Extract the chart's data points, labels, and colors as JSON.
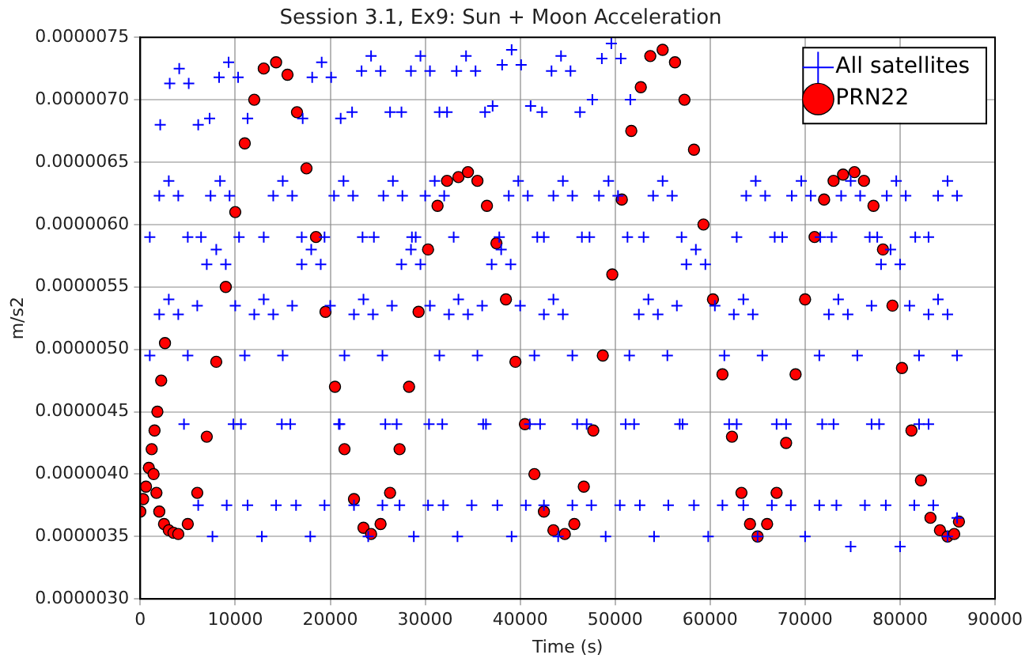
{
  "chart_data": {
    "type": "scatter",
    "title": "Session 3.1, Ex9: Sun + Moon Acceleration",
    "xlabel": "Time (s)",
    "ylabel": "m/s2",
    "xlim": [
      0,
      90000
    ],
    "xticks": [
      0,
      10000,
      20000,
      30000,
      40000,
      50000,
      60000,
      70000,
      80000,
      90000
    ],
    "ylim": [
      3e-06,
      7.5e-06
    ],
    "yticks": [
      {
        "value": 3e-06,
        "label": "0.0000030"
      },
      {
        "value": 3.5e-06,
        "label": "0.0000035"
      },
      {
        "value": 4e-06,
        "label": "0.0000040"
      },
      {
        "value": 4.5e-06,
        "label": "0.0000045"
      },
      {
        "value": 5e-06,
        "label": "0.0000050"
      },
      {
        "value": 5.5e-06,
        "label": "0.0000055"
      },
      {
        "value": 6e-06,
        "label": "0.0000060"
      },
      {
        "value": 6.5e-06,
        "label": "0.0000065"
      },
      {
        "value": 7e-06,
        "label": "0.0000070"
      },
      {
        "value": 7.5e-06,
        "label": "0.0000075"
      }
    ],
    "grid": true,
    "legend": "top right",
    "series": [
      {
        "name": "All satellites",
        "type": "scatter",
        "marker": "cross",
        "color": "#0000ff",
        "x": [
          4600,
          6100,
          7600,
          9100,
          10600,
          9800,
          11300,
          12800,
          14300,
          15800,
          14900,
          16400,
          17900,
          19400,
          20900,
          21000,
          22500,
          24000,
          25500,
          27000,
          25800,
          27300,
          28800,
          30300,
          31800,
          30400,
          31900,
          33400,
          34900,
          36400,
          36100,
          37600,
          39100,
          40600,
          42100,
          41000,
          42500,
          44000,
          45500,
          47000,
          46000,
          47500,
          49000,
          50500,
          52000,
          51100,
          52600,
          54100,
          55600,
          57100,
          56800,
          58300,
          59800,
          61300,
          62800,
          62000,
          63500,
          65000,
          66500,
          68000,
          67000,
          68500,
          70000,
          71500,
          73000,
          71800,
          73300,
          74800,
          76300,
          77800,
          77000,
          78500,
          80000,
          81500,
          83000,
          82000,
          83500,
          85000,
          86000,
          2100,
          3100,
          4100,
          5100,
          6100,
          7300,
          8300,
          9300,
          10300,
          11300,
          17100,
          18100,
          19100,
          20100,
          21100,
          22300,
          23300,
          24300,
          25300,
          26300,
          27500,
          28500,
          29500,
          30500,
          31500,
          32300,
          33300,
          34300,
          35300,
          36300,
          37100,
          38100,
          39100,
          40100,
          41100,
          42300,
          43300,
          44300,
          45300,
          46300,
          47600,
          48600,
          49600,
          50600,
          51600,
          1000,
          2000,
          3000,
          4000,
          5000,
          6400,
          7400,
          8400,
          9400,
          10400,
          13000,
          14000,
          15000,
          16000,
          17000,
          19400,
          20400,
          21400,
          22400,
          23400,
          24600,
          25600,
          26600,
          27600,
          28600,
          29000,
          30000,
          31000,
          32000,
          33000,
          37800,
          38800,
          39800,
          40800,
          41800,
          42500,
          43500,
          44500,
          45500,
          46500,
          47300,
          48300,
          49300,
          50300,
          51300,
          53000,
          54000,
          55000,
          56000,
          57000,
          62800,
          63800,
          64800,
          65800,
          66800,
          67600,
          68600,
          69600,
          70600,
          71600,
          72800,
          73800,
          74800,
          75800,
          76800,
          77600,
          78600,
          79600,
          80600,
          81600,
          83000,
          84000,
          85000,
          86000,
          6000,
          7000,
          8000,
          9000,
          10000,
          16000,
          17000,
          18000,
          19000,
          20000,
          26500,
          27500,
          28500,
          29500,
          30500,
          36000,
          37000,
          38000,
          39000,
          40000,
          56500,
          57500,
          58500,
          59500,
          60500,
          77000,
          78000,
          79000,
          80000,
          81000,
          1000,
          2000,
          3000,
          4000,
          5000,
          11000,
          12000,
          13000,
          14000,
          15000,
          21500,
          22500,
          23500,
          24500,
          25500,
          31500,
          32500,
          33500,
          34500,
          35500,
          41500,
          42500,
          43500,
          44500,
          45500,
          51500,
          52500,
          53500,
          54500,
          55500,
          61500,
          62500,
          63500,
          64500,
          65500,
          71500,
          72500,
          73500,
          74500,
          75500,
          82000,
          83000,
          84000,
          85000,
          86000
        ],
        "values": [
          4.4e-06,
          3.75e-06,
          3.5e-06,
          3.75e-06,
          4.4e-06,
          4.4e-06,
          3.75e-06,
          3.5e-06,
          3.75e-06,
          4.4e-06,
          4.4e-06,
          3.75e-06,
          3.5e-06,
          3.75e-06,
          4.4e-06,
          4.4e-06,
          3.75e-06,
          3.5e-06,
          3.75e-06,
          4.4e-06,
          4.4e-06,
          3.75e-06,
          3.5e-06,
          3.75e-06,
          4.4e-06,
          4.4e-06,
          3.75e-06,
          3.5e-06,
          3.75e-06,
          4.4e-06,
          4.4e-06,
          3.75e-06,
          3.5e-06,
          3.75e-06,
          4.4e-06,
          4.4e-06,
          3.75e-06,
          3.5e-06,
          3.75e-06,
          4.4e-06,
          4.4e-06,
          3.75e-06,
          3.5e-06,
          3.75e-06,
          4.4e-06,
          4.4e-06,
          3.75e-06,
          3.5e-06,
          3.75e-06,
          4.4e-06,
          4.4e-06,
          3.75e-06,
          3.5e-06,
          3.75e-06,
          4.4e-06,
          4.4e-06,
          3.75e-06,
          3.5e-06,
          3.75e-06,
          4.4e-06,
          4.4e-06,
          3.75e-06,
          3.5e-06,
          3.75e-06,
          4.4e-06,
          4.4e-06,
          3.75e-06,
          3.42e-06,
          3.75e-06,
          4.4e-06,
          4.4e-06,
          3.75e-06,
          3.42e-06,
          3.75e-06,
          4.4e-06,
          4.4e-06,
          3.75e-06,
          3.5e-06,
          3.65e-06,
          6.8e-06,
          7.13e-06,
          7.25e-06,
          7.13e-06,
          6.8e-06,
          6.85e-06,
          7.18e-06,
          7.3e-06,
          7.18e-06,
          6.85e-06,
          6.85e-06,
          7.18e-06,
          7.3e-06,
          7.18e-06,
          6.85e-06,
          6.9e-06,
          7.23e-06,
          7.35e-06,
          7.23e-06,
          6.9e-06,
          6.9e-06,
          7.23e-06,
          7.35e-06,
          7.23e-06,
          6.9e-06,
          6.9e-06,
          7.23e-06,
          7.35e-06,
          7.23e-06,
          6.9e-06,
          6.95e-06,
          7.28e-06,
          7.4e-06,
          7.28e-06,
          6.95e-06,
          6.9e-06,
          7.23e-06,
          7.35e-06,
          7.23e-06,
          6.9e-06,
          7e-06,
          7.33e-06,
          7.45e-06,
          7.33e-06,
          7e-06,
          5.9e-06,
          6.23e-06,
          6.35e-06,
          6.23e-06,
          5.9e-06,
          5.9e-06,
          6.23e-06,
          6.35e-06,
          6.23e-06,
          5.9e-06,
          5.9e-06,
          6.23e-06,
          6.35e-06,
          6.23e-06,
          5.9e-06,
          5.9e-06,
          6.23e-06,
          6.35e-06,
          6.23e-06,
          5.9e-06,
          5.9e-06,
          6.23e-06,
          6.35e-06,
          6.23e-06,
          5.9e-06,
          5.9e-06,
          6.23e-06,
          6.35e-06,
          6.23e-06,
          5.9e-06,
          5.9e-06,
          6.23e-06,
          6.35e-06,
          6.23e-06,
          5.9e-06,
          5.9e-06,
          6.23e-06,
          6.35e-06,
          6.23e-06,
          5.9e-06,
          5.9e-06,
          6.23e-06,
          6.35e-06,
          6.23e-06,
          5.9e-06,
          5.9e-06,
          6.23e-06,
          6.35e-06,
          6.23e-06,
          5.9e-06,
          5.9e-06,
          6.23e-06,
          6.35e-06,
          6.23e-06,
          5.9e-06,
          5.9e-06,
          6.23e-06,
          6.35e-06,
          6.23e-06,
          5.9e-06,
          5.9e-06,
          6.23e-06,
          6.35e-06,
          6.23e-06,
          5.9e-06,
          5.9e-06,
          6.23e-06,
          6.35e-06,
          6.23e-06,
          5.9e-06,
          5.9e-06,
          6.23e-06,
          6.35e-06,
          6.23e-06,
          5.35e-06,
          5.68e-06,
          5.8e-06,
          5.68e-06,
          5.35e-06,
          5.35e-06,
          5.68e-06,
          5.8e-06,
          5.68e-06,
          5.35e-06,
          5.35e-06,
          5.68e-06,
          5.8e-06,
          5.68e-06,
          5.35e-06,
          5.35e-06,
          5.68e-06,
          5.8e-06,
          5.68e-06,
          5.35e-06,
          5.35e-06,
          5.68e-06,
          5.8e-06,
          5.68e-06,
          5.35e-06,
          5.35e-06,
          5.68e-06,
          5.8e-06,
          5.68e-06,
          5.35e-06,
          4.95e-06,
          5.28e-06,
          5.4e-06,
          5.28e-06,
          4.95e-06,
          4.95e-06,
          5.28e-06,
          5.4e-06,
          5.28e-06,
          4.95e-06,
          4.95e-06,
          5.28e-06,
          5.4e-06,
          5.28e-06,
          4.95e-06,
          4.95e-06,
          5.28e-06,
          5.4e-06,
          5.28e-06,
          4.95e-06,
          4.95e-06,
          5.28e-06,
          5.4e-06,
          5.28e-06,
          4.95e-06,
          4.95e-06,
          5.28e-06,
          5.4e-06,
          5.28e-06,
          4.95e-06,
          4.95e-06,
          5.28e-06,
          5.4e-06,
          5.28e-06,
          4.95e-06,
          4.95e-06,
          5.28e-06,
          5.4e-06,
          5.28e-06,
          4.95e-06,
          4.95e-06,
          5.28e-06,
          5.4e-06,
          5.28e-06,
          4.95e-06
        ]
      },
      {
        "name": "PRN22",
        "type": "scatter",
        "marker": "circle",
        "color": "#ff0000",
        "x": [
          0,
          300,
          600,
          900,
          1200,
          1500,
          1800,
          2200,
          2600,
          1400,
          1700,
          2000,
          2500,
          3000,
          3500,
          4000,
          5000,
          6000,
          7000,
          8000,
          9000,
          10000,
          11000,
          12000,
          13000,
          14300,
          15500,
          16500,
          17500,
          18500,
          19500,
          20500,
          21500,
          22500,
          23500,
          24300,
          25300,
          26300,
          27300,
          28300,
          29300,
          30300,
          31300,
          32300,
          33500,
          34500,
          35500,
          36500,
          37500,
          38500,
          39500,
          40500,
          41500,
          42500,
          43500,
          44700,
          45700,
          46700,
          47700,
          48700,
          49700,
          50700,
          51700,
          52700,
          53700,
          55000,
          56300,
          57300,
          58300,
          59300,
          60300,
          61300,
          62300,
          63300,
          64200,
          65000,
          66000,
          67000,
          68000,
          69000,
          70000,
          71000,
          72000,
          73000,
          74000,
          75200,
          76200,
          77200,
          78200,
          79200,
          80200,
          81200,
          82200,
          83200,
          84200,
          85000,
          85700,
          86200
        ],
        "values": [
          3.7e-06,
          3.8e-06,
          3.9e-06,
          4.05e-06,
          4.2e-06,
          4.35e-06,
          4.5e-06,
          4.75e-06,
          5.05e-06,
          4e-06,
          3.85e-06,
          3.7e-06,
          3.6e-06,
          3.55e-06,
          3.53e-06,
          3.52e-06,
          3.6e-06,
          3.85e-06,
          4.3e-06,
          4.9e-06,
          5.5e-06,
          6.1e-06,
          6.65e-06,
          7e-06,
          7.25e-06,
          7.3e-06,
          7.2e-06,
          6.9e-06,
          6.45e-06,
          5.9e-06,
          5.3e-06,
          4.7e-06,
          4.2e-06,
          3.8e-06,
          3.57e-06,
          3.52e-06,
          3.6e-06,
          3.85e-06,
          4.2e-06,
          4.7e-06,
          5.3e-06,
          5.8e-06,
          6.15e-06,
          6.35e-06,
          6.38e-06,
          6.42e-06,
          6.35e-06,
          6.15e-06,
          5.85e-06,
          5.4e-06,
          4.9e-06,
          4.4e-06,
          4e-06,
          3.7e-06,
          3.55e-06,
          3.52e-06,
          3.6e-06,
          3.9e-06,
          4.35e-06,
          4.95e-06,
          5.6e-06,
          6.2e-06,
          6.75e-06,
          7.1e-06,
          7.35e-06,
          7.4e-06,
          7.3e-06,
          7e-06,
          6.6e-06,
          6e-06,
          5.4e-06,
          4.8e-06,
          4.3e-06,
          3.85e-06,
          3.6e-06,
          3.5e-06,
          3.6e-06,
          3.85e-06,
          4.25e-06,
          4.8e-06,
          5.4e-06,
          5.9e-06,
          6.2e-06,
          6.35e-06,
          6.4e-06,
          6.42e-06,
          6.35e-06,
          6.15e-06,
          5.8e-06,
          5.35e-06,
          4.85e-06,
          4.35e-06,
          3.95e-06,
          3.65e-06,
          3.55e-06,
          3.5e-06,
          3.52e-06,
          3.62e-06
        ]
      }
    ]
  }
}
